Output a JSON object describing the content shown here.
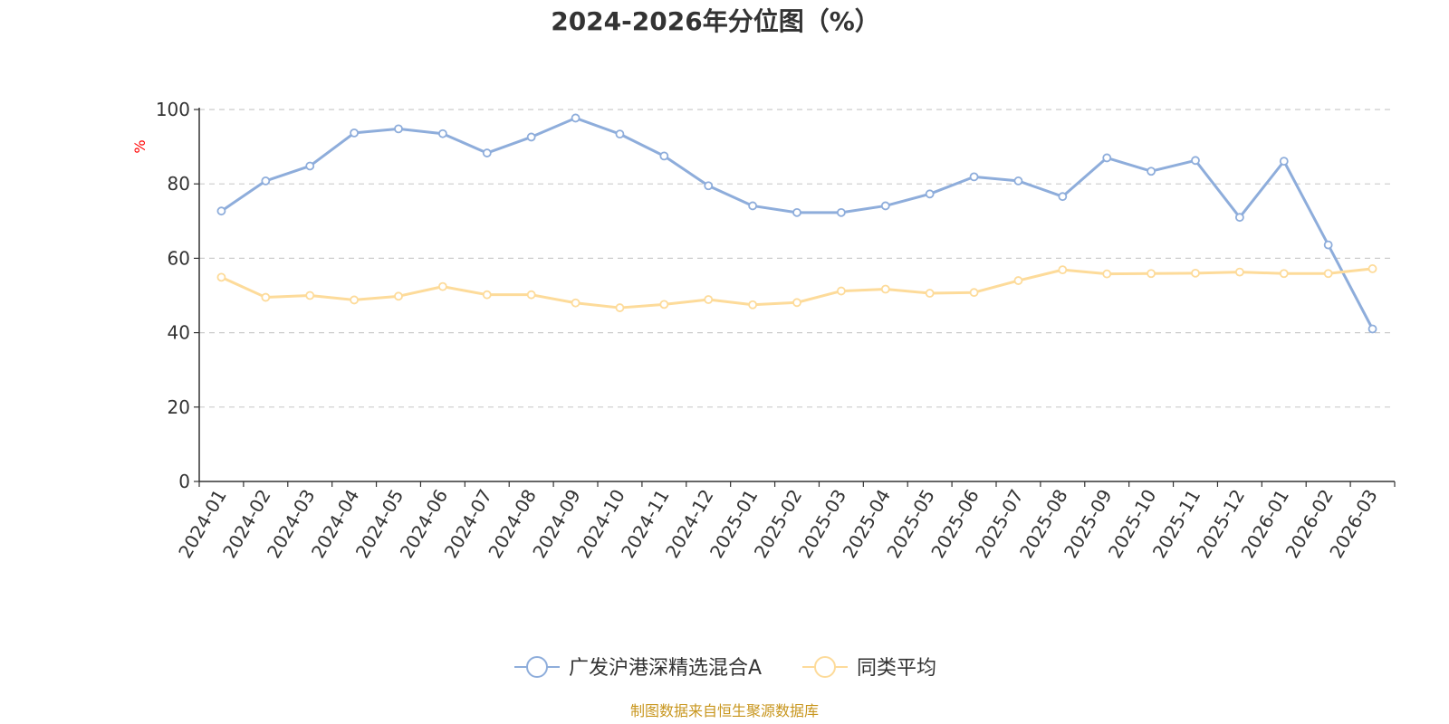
{
  "chart_data": {
    "type": "line",
    "title": "2024-2026年分位图（%）",
    "ylabel": "%",
    "ylim": [
      0,
      100
    ],
    "yticks": [
      0,
      20,
      40,
      60,
      80,
      100
    ],
    "grid": true,
    "legend_position": "bottom-center",
    "categories": [
      "2024-01",
      "2024-02",
      "2024-03",
      "2024-04",
      "2024-05",
      "2024-06",
      "2024-07",
      "2024-08",
      "2024-09",
      "2024-10",
      "2024-11",
      "2024-12",
      "2025-01",
      "2025-02",
      "2025-03",
      "2025-04",
      "2025-05",
      "2025-06",
      "2025-07",
      "2025-08",
      "2025-09",
      "2025-10",
      "2025-11",
      "2025-12",
      "2026-01",
      "2026-02",
      "2026-03"
    ],
    "series": [
      {
        "name": "广发沪港深精选混合A",
        "color": "#8eaddb",
        "values": [
          72.7,
          80.8,
          84.8,
          93.7,
          94.8,
          93.5,
          88.3,
          92.6,
          97.7,
          93.4,
          87.5,
          79.5,
          74.1,
          72.3,
          72.3,
          74.1,
          77.3,
          81.9,
          80.8,
          76.6,
          87.0,
          83.4,
          86.3,
          71.0,
          86.1,
          63.6,
          41.0
        ]
      },
      {
        "name": "同类平均",
        "color": "#fddb9a",
        "values": [
          54.9,
          49.5,
          50.0,
          48.8,
          49.8,
          52.4,
          50.2,
          50.2,
          48.0,
          46.7,
          47.6,
          48.9,
          47.5,
          48.1,
          51.2,
          51.7,
          50.6,
          50.8,
          54.0,
          56.9,
          55.8,
          55.9,
          56.0,
          56.3,
          55.9,
          55.9,
          57.2
        ]
      }
    ],
    "axis_color": "#333333",
    "grid_color": "#cccccc",
    "ylabel_color": "#ff0000"
  },
  "footer": {
    "source": "制图数据来自恒生聚源数据库",
    "color": "#c8961e"
  }
}
